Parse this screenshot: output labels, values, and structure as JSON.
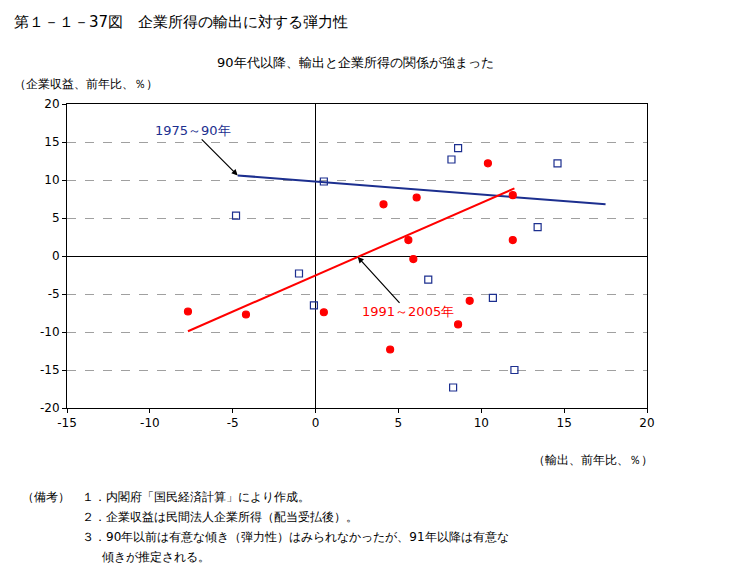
{
  "chart_data": {
    "type": "scatter",
    "title": "第１－１－37図　企業所得の輸出に対する弾力性",
    "subtitle": "90年代以降、輸出と企業所得の関係が強まった",
    "y_label": "（企業収益、前年比、％）",
    "x_label": "（輸出、前年比、％）",
    "xlim": [
      -15,
      20
    ],
    "xticks": [
      -15,
      -10,
      -5,
      0,
      5,
      10,
      15,
      20
    ],
    "ylim": [
      -20,
      20
    ],
    "yticks": [
      -20,
      -15,
      -10,
      -5,
      0,
      5,
      10,
      15,
      20
    ],
    "grid": true,
    "series": [
      {
        "name": "1975～90年",
        "color": "#1c2f8f",
        "marker": "square-open",
        "x": [
          -4.8,
          -1.0,
          -0.1,
          0.5,
          8.2,
          8.6,
          6.8,
          8.3,
          10.7,
          12.0,
          13.4,
          14.6
        ],
        "values": [
          5.3,
          -2.3,
          -6.5,
          9.8,
          12.7,
          14.2,
          -3.1,
          -17.3,
          -5.5,
          -15.0,
          3.8,
          12.2
        ],
        "trend": {
          "x": [
            -4.7,
            17.5
          ],
          "values": [
            10.6,
            6.8
          ]
        }
      },
      {
        "name": "1991～2005年",
        "color": "#ff0000",
        "marker": "circle",
        "x": [
          -7.7,
          -4.2,
          0.5,
          4.1,
          5.6,
          5.9,
          6.1,
          4.5,
          8.6,
          9.3,
          10.4,
          11.9,
          11.9
        ],
        "values": [
          -7.3,
          -7.7,
          -7.4,
          6.8,
          2.1,
          -0.4,
          7.7,
          -12.3,
          -9.0,
          -5.9,
          12.2,
          8.0,
          2.1
        ],
        "trend": {
          "x": [
            -7.7,
            12.0
          ],
          "values": [
            -9.9,
            8.9
          ]
        }
      }
    ],
    "notes_heading": "（備考）",
    "notes": [
      "１．内閣府「国民経済計算」により作成。",
      "２．企業収益は民間法人企業所得（配当受払後）。",
      "３．90年以前は有意な傾き（弾力性）はみられなかったが、91年以降は有意な\n傾きが推定される。"
    ]
  }
}
